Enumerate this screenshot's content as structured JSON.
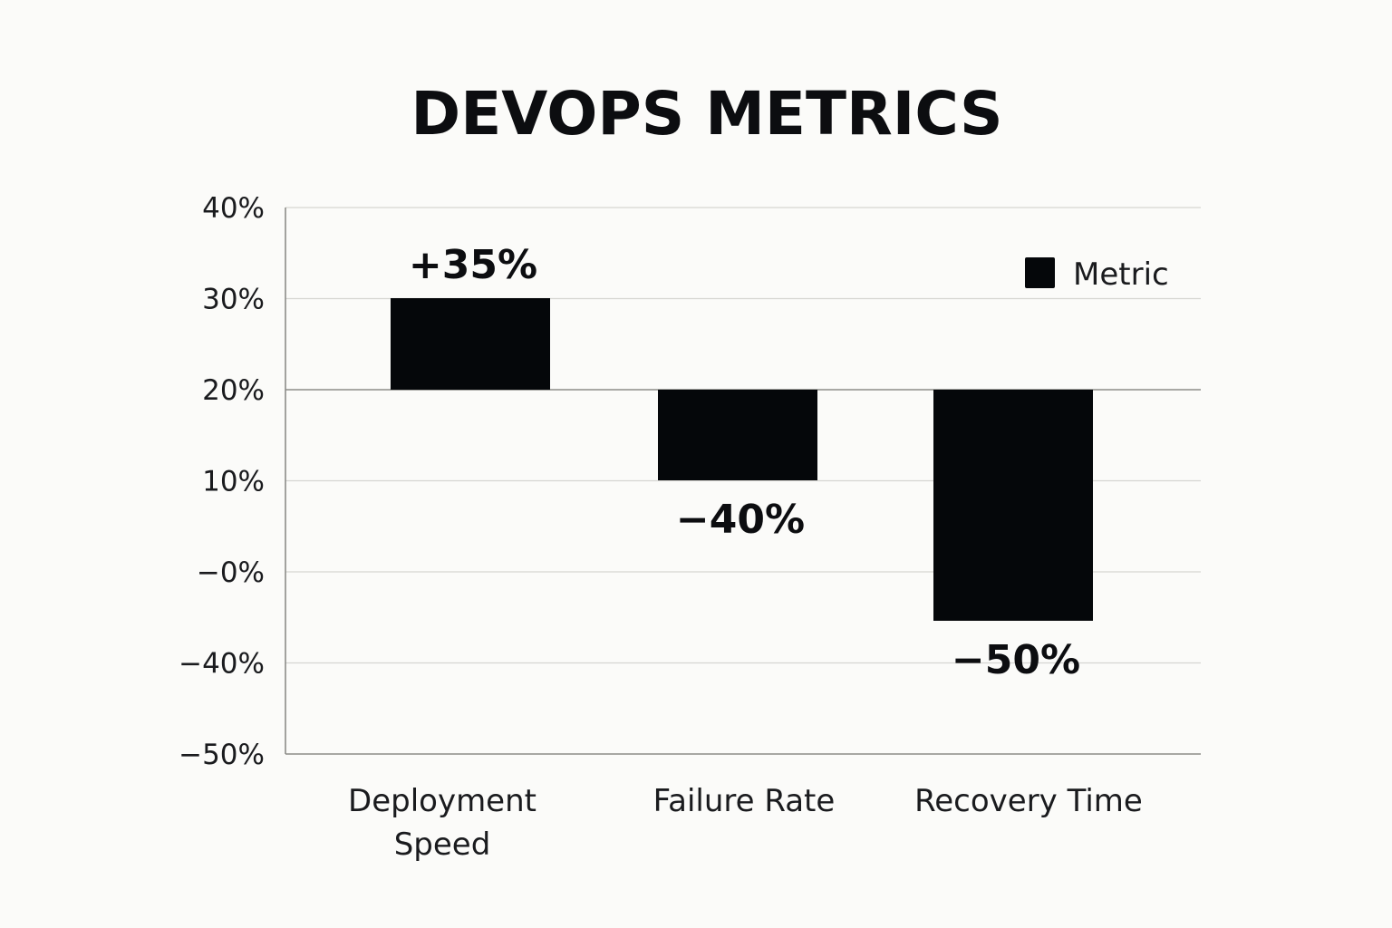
{
  "colors": {
    "background": "#fbfbf9",
    "bar": "#05070a",
    "grid": "#d6d6d2",
    "axis": "#8c8c88",
    "text": "#0c0d10"
  },
  "chart_data": {
    "type": "bar",
    "title": "DEVOPS METRICS",
    "xlabel": "",
    "ylabel": "",
    "y_ticks": [
      "40%",
      "30%",
      "20%",
      "10%",
      "−0%",
      "−40%",
      "−50%"
    ],
    "baseline_tick": "20%",
    "categories": [
      {
        "lines": [
          "Deployment",
          "Speed"
        ]
      },
      {
        "lines": [
          "Failure Rate"
        ]
      },
      {
        "lines": [
          "Recovery Time"
        ]
      }
    ],
    "series": [
      {
        "name": "Metric",
        "values": [
          35,
          -40,
          -50
        ],
        "labels": [
          "+35%",
          "−40%",
          "−50%"
        ]
      }
    ],
    "legend": {
      "position": "top-right"
    },
    "grid": true
  }
}
